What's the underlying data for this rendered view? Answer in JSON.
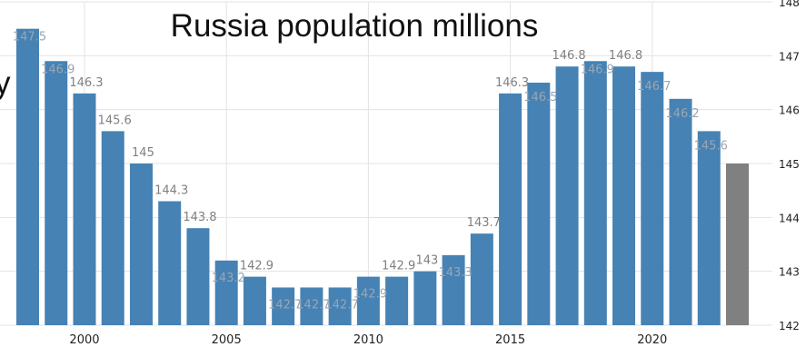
{
  "chart_data": {
    "type": "bar",
    "title": "Russia population millions",
    "title_fragment": "y",
    "xlabel": "",
    "ylabel": "",
    "ylim": [
      142,
      148
    ],
    "yticks": [
      "148",
      "147",
      "146",
      "145",
      "144",
      "143",
      "142"
    ],
    "x_tick_labels": [
      "2000",
      "2005",
      "2010",
      "2015",
      "2020"
    ],
    "x_tick_years": [
      2000,
      2005,
      2010,
      2015,
      2020
    ],
    "grid": true,
    "categories": [
      1998,
      1999,
      2000,
      2001,
      2002,
      2003,
      2004,
      2005,
      2006,
      2007,
      2008,
      2009,
      2010,
      2011,
      2012,
      2013,
      2014,
      2015,
      2016,
      2017,
      2018,
      2019,
      2020,
      2021,
      2022,
      2023
    ],
    "values": [
      147.5,
      146.9,
      146.3,
      145.6,
      145.0,
      144.3,
      143.8,
      143.2,
      142.9,
      142.7,
      142.7,
      142.7,
      142.9,
      142.9,
      143.0,
      143.3,
      143.7,
      146.3,
      146.5,
      146.8,
      146.9,
      146.8,
      146.7,
      146.2,
      145.6,
      145.0
    ],
    "data_labels": [
      "147.5",
      "146.9",
      "146.3",
      "145.6",
      "145",
      "144.3",
      "143.8",
      "143.2",
      "142.9",
      "142.7",
      "142.7",
      "142.7",
      "142.9",
      "142.9",
      "143",
      "143.3",
      "143.7",
      "146.3",
      "146.5",
      "146.8",
      "146.9",
      "146.8",
      "146.7",
      "146.2",
      "145.6",
      ""
    ],
    "colors": {
      "bar": "#4682b4",
      "forecast_bar": "#808080",
      "label": "#808080",
      "label_inside": "#9aa6b2",
      "grid": "#e3e3e3",
      "axis_text": "#222222",
      "title": "#111111"
    }
  }
}
